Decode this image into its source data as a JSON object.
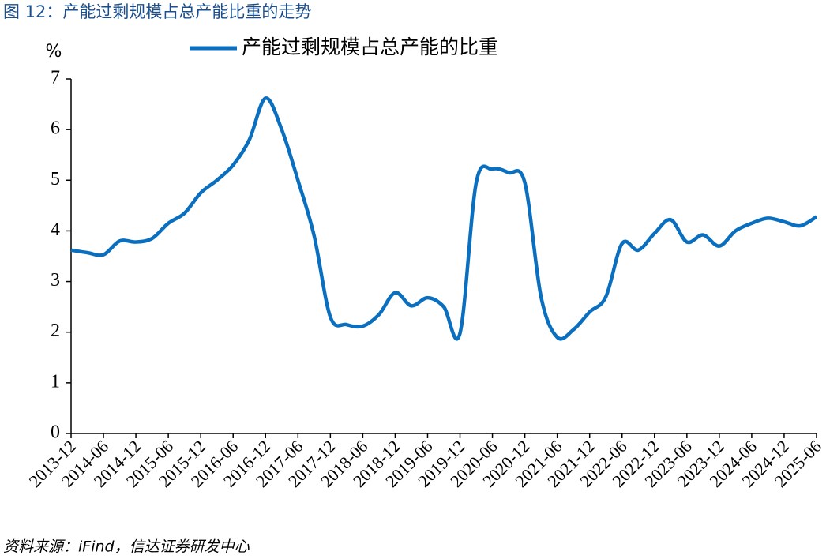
{
  "chart_data": {
    "type": "line",
    "title": "图 12：产能过剩规模占总产能比重的走势",
    "y_label": "%",
    "source": "资料来源：iFind，信达证券研发中心",
    "categories": [
      "2013-12",
      null,
      "2014-06",
      null,
      "2014-12",
      null,
      "2015-06",
      null,
      "2015-12",
      null,
      "2016-06",
      null,
      "2016-12",
      null,
      "2017-06",
      null,
      "2017-12",
      null,
      "2018-06",
      null,
      "2018-12",
      null,
      "2019-06",
      null,
      "2019-12",
      null,
      "2020-06",
      null,
      "2020-12",
      null,
      "2021-06",
      null,
      "2021-12",
      null,
      "2022-06",
      null,
      "2022-12",
      null,
      "2023-06",
      null,
      "2023-12",
      null,
      "2024-06",
      null,
      "2024-12",
      null,
      "2025-06"
    ],
    "series": [
      {
        "name": "产能过剩规模占总产能的比重",
        "color": "#0a6fbf",
        "values": [
          3.62,
          3.57,
          3.53,
          3.8,
          3.78,
          3.85,
          4.15,
          4.35,
          4.75,
          5.0,
          5.3,
          5.8,
          6.62,
          6.0,
          5.0,
          3.9,
          2.3,
          2.15,
          2.12,
          2.35,
          2.78,
          2.52,
          2.68,
          2.5,
          1.98,
          4.95,
          5.22,
          5.15,
          4.95,
          2.7,
          1.9,
          2.05,
          2.4,
          2.7,
          3.75,
          3.62,
          3.95,
          4.22,
          3.78,
          3.92,
          3.7,
          4.0,
          4.15,
          4.25,
          4.18,
          4.1,
          4.28
        ]
      }
    ],
    "ylim": [
      0,
      7
    ],
    "yticks": [
      0,
      1,
      2,
      3,
      4,
      5,
      6,
      7
    ],
    "grid": false
  }
}
